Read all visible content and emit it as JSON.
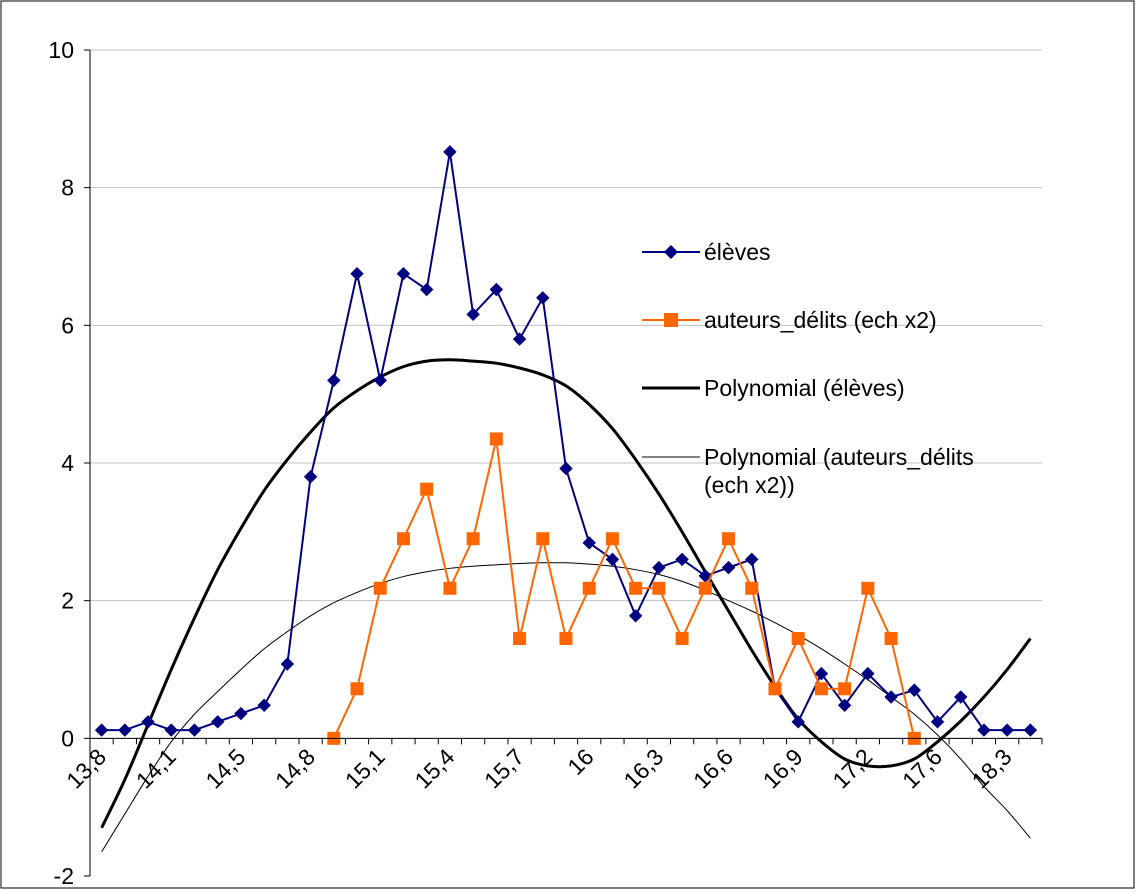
{
  "chart_data": {
    "type": "line",
    "title": "",
    "xlabel": "",
    "ylabel": "",
    "ylim": [
      -2,
      10
    ],
    "y_ticks": [
      -2,
      0,
      2,
      4,
      6,
      8,
      10
    ],
    "grid": "horizontal",
    "legend_position": "right",
    "x_tick_labels": [
      "13,8",
      "14,1",
      "14,5",
      "14,8",
      "15,1",
      "15,4",
      "15,7",
      "16",
      "16,3",
      "16,6",
      "16,9",
      "17,2",
      "17,6",
      "18,3"
    ],
    "series": [
      {
        "name": "élèves",
        "color": "#000080",
        "marker": "diamond",
        "values": [
          0.12,
          0.12,
          0.24,
          0.12,
          0.12,
          0.24,
          0.36,
          0.48,
          1.08,
          3.8,
          5.2,
          6.75,
          5.2,
          6.75,
          6.52,
          8.52,
          6.16,
          6.52,
          5.8,
          6.4,
          3.92,
          2.84,
          2.6,
          1.78,
          2.48,
          2.6,
          2.36,
          2.48,
          2.6,
          0.72,
          0.24,
          0.94,
          0.48,
          0.94,
          0.6,
          0.7,
          0.24,
          0.6,
          0.12,
          0.12,
          0.12
        ]
      },
      {
        "name": "auteurs_délits (ech x2)",
        "color": "#ff6600",
        "marker": "square",
        "values": [
          null,
          null,
          null,
          null,
          null,
          null,
          null,
          null,
          null,
          null,
          0,
          0.72,
          2.18,
          2.9,
          3.62,
          2.18,
          2.9,
          4.35,
          1.45,
          2.9,
          1.45,
          2.18,
          2.9,
          2.18,
          2.18,
          1.45,
          2.18,
          2.9,
          2.18,
          0.72,
          1.45,
          0.72,
          0.72,
          2.18,
          1.45,
          0
        ]
      },
      {
        "name": "Polynomial (élèves)",
        "color": "#000000",
        "style": "trend-thick",
        "values": [
          -1.3,
          -0.6,
          0.2,
          1.0,
          1.75,
          2.45,
          3.05,
          3.6,
          4.05,
          4.45,
          4.8,
          5.05,
          5.25,
          5.4,
          5.48,
          5.5,
          5.48,
          5.45,
          5.38,
          5.28,
          5.12,
          4.85,
          4.5,
          4.05,
          3.55,
          3.0,
          2.42,
          1.85,
          1.28,
          0.75,
          0.28,
          -0.05,
          -0.3,
          -0.4,
          -0.4,
          -0.3,
          -0.05,
          0.25,
          0.6,
          1.0,
          1.45
        ]
      },
      {
        "name": "Polynomial (auteurs_délits (ech x2))",
        "color": "#000000",
        "style": "trend-thin",
        "values": [
          -1.65,
          -1.1,
          -0.55,
          -0.05,
          0.35,
          0.68,
          1.0,
          1.3,
          1.55,
          1.78,
          1.97,
          2.12,
          2.25,
          2.35,
          2.42,
          2.47,
          2.5,
          2.52,
          2.54,
          2.55,
          2.55,
          2.53,
          2.5,
          2.45,
          2.38,
          2.28,
          2.15,
          2.0,
          1.85,
          1.68,
          1.5,
          1.3,
          1.08,
          0.85,
          0.6,
          0.35,
          0.05,
          -0.3,
          -0.7,
          -1.05,
          -1.45
        ]
      }
    ]
  }
}
